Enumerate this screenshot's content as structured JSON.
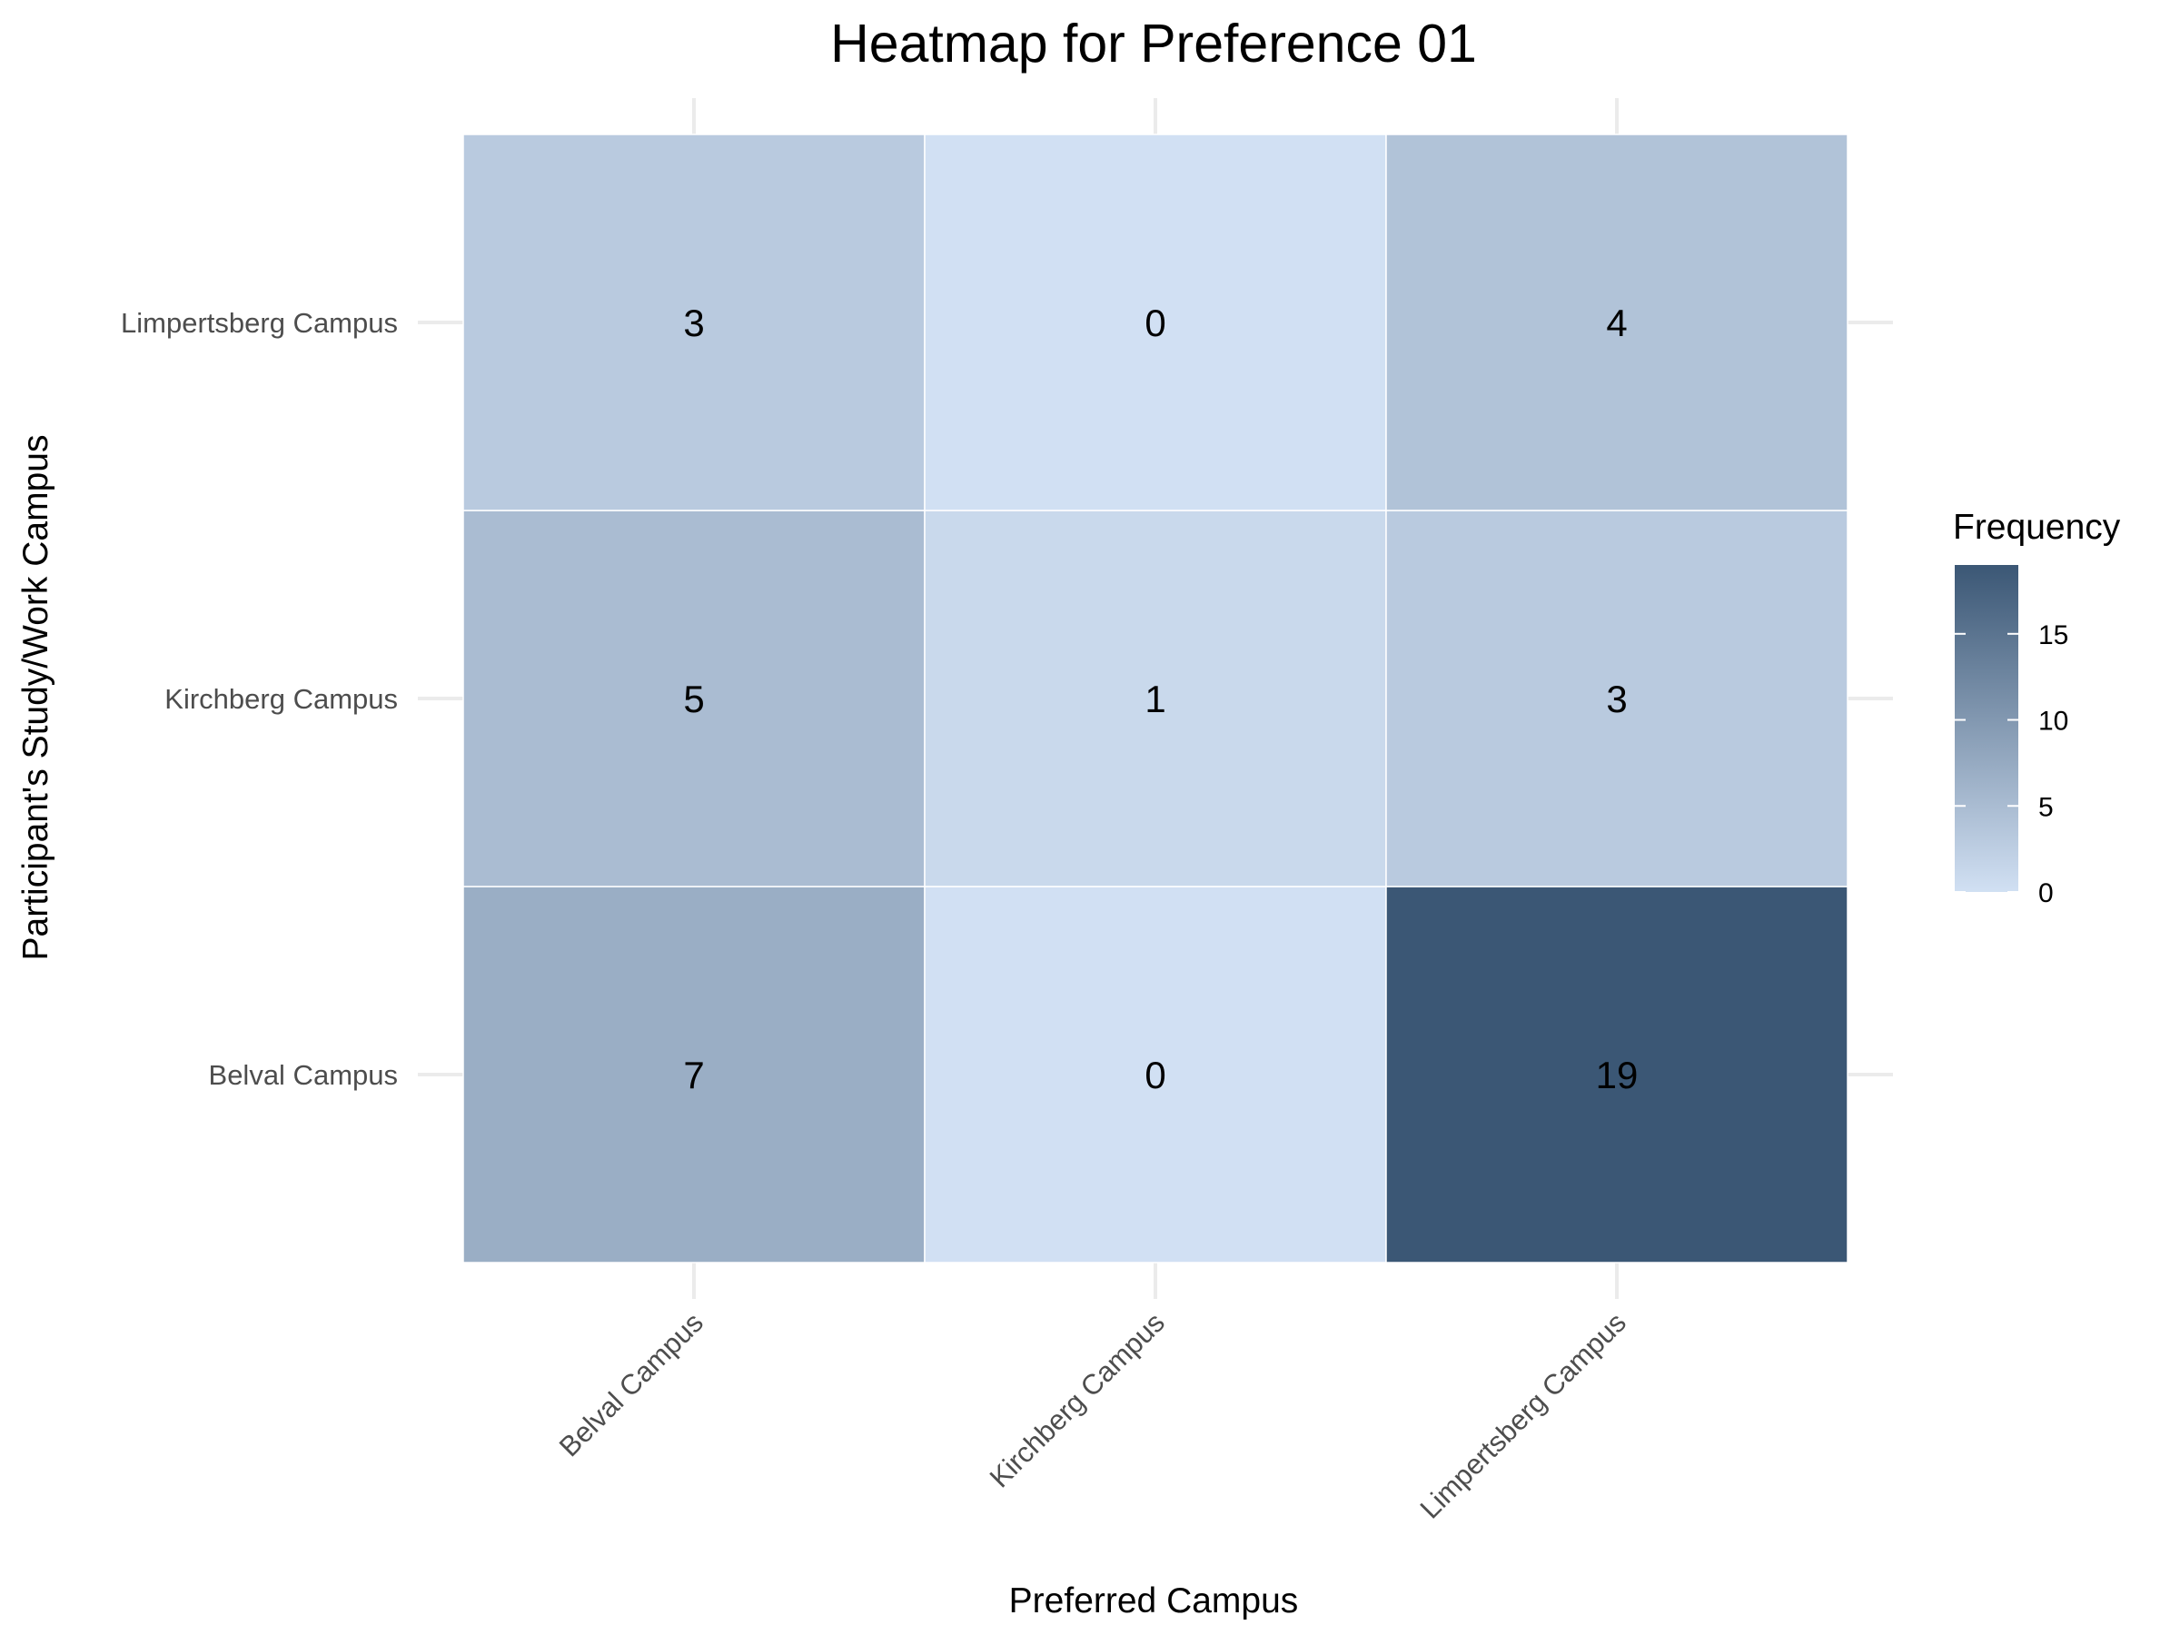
{
  "colors": {
    "low": "#d1e0f3",
    "high": "#3b5775",
    "grid": "#ebebeb",
    "tile_border": "#ffffff"
  },
  "chart_data": {
    "type": "heatmap",
    "title": "Heatmap for Preference 01",
    "xlabel": "Preferred Campus",
    "ylabel": "Participant's Study/Work Campus",
    "x_categories": [
      "Belval Campus",
      "Kirchberg Campus",
      "Limpertsberg Campus"
    ],
    "y_categories": [
      "Belval Campus",
      "Kirchberg Campus",
      "Limpertsberg Campus"
    ],
    "values": [
      [
        7,
        0,
        19
      ],
      [
        5,
        1,
        3
      ],
      [
        3,
        0,
        4
      ]
    ],
    "legend": {
      "title": "Frequency",
      "placement": "right",
      "range": [
        0,
        19
      ],
      "ticks": [
        0,
        5,
        10,
        15
      ]
    },
    "grid": true
  }
}
